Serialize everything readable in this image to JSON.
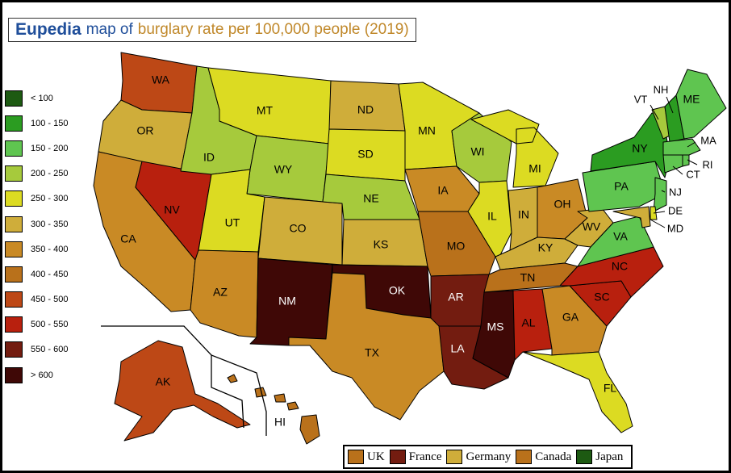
{
  "title": {
    "brand": "Eupedia",
    "connector": "map of",
    "subtitle": "burglary rate per 100,000 people (2019)"
  },
  "legend": [
    {
      "label": "< 100",
      "color": "#1d5a12"
    },
    {
      "label": "100 - 150",
      "color": "#2b9c21"
    },
    {
      "label": "150 - 200",
      "color": "#5fc550"
    },
    {
      "label": "200 - 250",
      "color": "#a6ca3c"
    },
    {
      "label": "250 - 300",
      "color": "#dcdb22"
    },
    {
      "label": "300 - 350",
      "color": "#cfad3a"
    },
    {
      "label": "350 - 400",
      "color": "#c98a25"
    },
    {
      "label": "400 - 450",
      "color": "#b9711b"
    },
    {
      "label": "450 - 500",
      "color": "#bd4816"
    },
    {
      "label": "500 - 550",
      "color": "#b8200e"
    },
    {
      "label": "550 - 600",
      "color": "#731c10"
    },
    {
      "label": "> 600",
      "color": "#3f0806"
    }
  ],
  "states": [
    {
      "abbr": "WA",
      "color": "#bd4816"
    },
    {
      "abbr": "OR",
      "color": "#cfad3a"
    },
    {
      "abbr": "CA",
      "color": "#c98a25"
    },
    {
      "abbr": "NV",
      "color": "#b8200e"
    },
    {
      "abbr": "ID",
      "color": "#a6ca3c"
    },
    {
      "abbr": "MT",
      "color": "#dcdb22"
    },
    {
      "abbr": "WY",
      "color": "#a6ca3c"
    },
    {
      "abbr": "UT",
      "color": "#dcdb22"
    },
    {
      "abbr": "AZ",
      "color": "#c98a25"
    },
    {
      "abbr": "CO",
      "color": "#cfad3a"
    },
    {
      "abbr": "NM",
      "color": "#3f0806"
    },
    {
      "abbr": "ND",
      "color": "#cfad3a"
    },
    {
      "abbr": "SD",
      "color": "#dcdb22"
    },
    {
      "abbr": "NE",
      "color": "#a6ca3c"
    },
    {
      "abbr": "KS",
      "color": "#cfad3a"
    },
    {
      "abbr": "OK",
      "color": "#3f0806"
    },
    {
      "abbr": "TX",
      "color": "#c98a25"
    },
    {
      "abbr": "MN",
      "color": "#dcdb22"
    },
    {
      "abbr": "IA",
      "color": "#c98a25"
    },
    {
      "abbr": "MO",
      "color": "#b9711b"
    },
    {
      "abbr": "AR",
      "color": "#731c10"
    },
    {
      "abbr": "LA",
      "color": "#731c10"
    },
    {
      "abbr": "WI",
      "color": "#a6ca3c"
    },
    {
      "abbr": "IL",
      "color": "#dcdb22"
    },
    {
      "abbr": "MI",
      "color": "#dcdb22"
    },
    {
      "abbr": "IN",
      "color": "#cfad3a"
    },
    {
      "abbr": "OH",
      "color": "#c98a25"
    },
    {
      "abbr": "KY",
      "color": "#cfad3a"
    },
    {
      "abbr": "TN",
      "color": "#b9711b"
    },
    {
      "abbr": "MS",
      "color": "#3f0806"
    },
    {
      "abbr": "AL",
      "color": "#b8200e"
    },
    {
      "abbr": "GA",
      "color": "#c98a25"
    },
    {
      "abbr": "FL",
      "color": "#dcdb22"
    },
    {
      "abbr": "SC",
      "color": "#b8200e"
    },
    {
      "abbr": "NC",
      "color": "#b8200e"
    },
    {
      "abbr": "VA",
      "color": "#5fc550"
    },
    {
      "abbr": "WV",
      "color": "#cfad3a"
    },
    {
      "abbr": "PA",
      "color": "#5fc550"
    },
    {
      "abbr": "NY",
      "color": "#2b9c21"
    },
    {
      "abbr": "VT",
      "color": "#a6ca3c"
    },
    {
      "abbr": "NH",
      "color": "#2b9c21"
    },
    {
      "abbr": "ME",
      "color": "#5fc550"
    },
    {
      "abbr": "MA",
      "color": "#5fc550"
    },
    {
      "abbr": "CT",
      "color": "#5fc550"
    },
    {
      "abbr": "RI",
      "color": "#5fc550"
    },
    {
      "abbr": "NJ",
      "color": "#5fc550"
    },
    {
      "abbr": "DE",
      "color": "#dcdb22"
    },
    {
      "abbr": "MD",
      "color": "#cfad3a"
    },
    {
      "abbr": "AK",
      "color": "#bd4816"
    },
    {
      "abbr": "HI",
      "color": "#b9711b"
    }
  ],
  "comparison": [
    {
      "label": "UK",
      "color": "#b9711b"
    },
    {
      "label": "France",
      "color": "#731c10"
    },
    {
      "label": "Germany",
      "color": "#cfad3a"
    },
    {
      "label": "Canada",
      "color": "#b9711b"
    },
    {
      "label": "Japan",
      "color": "#1d5a12"
    }
  ]
}
